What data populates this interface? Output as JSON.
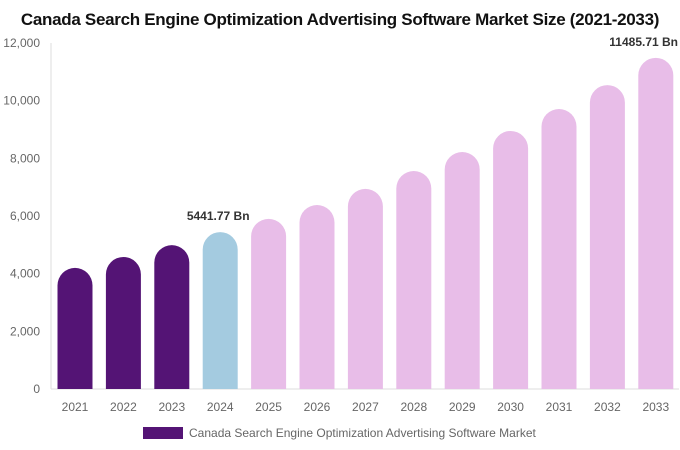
{
  "chart_data": {
    "type": "bar",
    "title": "Canada Search Engine Optimization Advertising Software Market Size (2021-2033)",
    "categories": [
      "2021",
      "2022",
      "2023",
      "2024",
      "2025",
      "2026",
      "2027",
      "2028",
      "2029",
      "2030",
      "2031",
      "2032",
      "2033"
    ],
    "series": [
      {
        "name": "Canada Search Engine Optimization Advertising Software Market",
        "values": [
          4200,
          4580,
          4990,
          5441.77,
          5900,
          6380,
          6940,
          7560,
          8220,
          8950,
          9710,
          10540,
          11485.71
        ]
      }
    ],
    "data_labels": {
      "3": "5441.77 Bn",
      "12": "11485.71 Bn"
    },
    "ylim": [
      0,
      12000
    ],
    "yticks": [
      0,
      2000,
      4000,
      6000,
      8000,
      10000,
      12000
    ],
    "ytick_labels": [
      "0",
      "2,000",
      "4,000",
      "6,000",
      "8,000",
      "10,000",
      "12,000"
    ],
    "grid": false,
    "legend_position": "bottom",
    "colors": {
      "historical": "#541475",
      "base_year": "#a4cbe0",
      "forecast": "#e8bde8"
    }
  }
}
